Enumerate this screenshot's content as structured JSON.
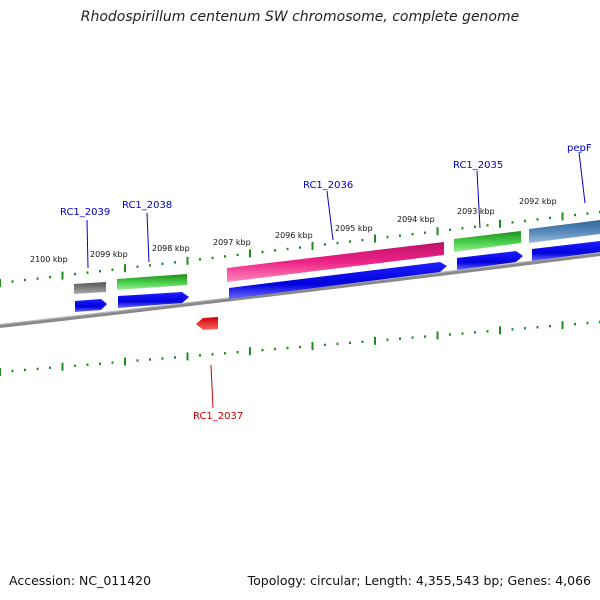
{
  "title": "Rhodospirillum centenum SW chromosome, complete genome",
  "footer": {
    "accession": "Accession: NC_011420",
    "summary": "Topology: circular; Length: 4,355,543 bp; Genes: 4,066"
  },
  "colors": {
    "backbone": "#808080",
    "ticks": "#1e8c1e",
    "cds_blue": "#0000dd",
    "label_blue": "#0000cc",
    "label_red": "#cc0000"
  },
  "kbp_labels": [
    "2100 kbp",
    "2099 kbp",
    "2098 kbp",
    "2097 kbp",
    "2096 kbp",
    "2095 kbp",
    "2094 kbp",
    "2093 kbp",
    "2092 kbp"
  ],
  "genes": [
    {
      "label": "RC1_2039",
      "color": "#777777",
      "strand": "+"
    },
    {
      "label": "RC1_2038",
      "color": "#33bb33",
      "strand": "+"
    },
    {
      "label": "RC1_2037",
      "color": "#ee1111",
      "strand": "-"
    },
    {
      "label": "RC1_2036",
      "color": "#ee2288",
      "strand": "+"
    },
    {
      "label": "RC1_2035",
      "color": "#33aa33",
      "strand": "+"
    },
    {
      "label": "pepF",
      "color": "#5588bb",
      "strand": "+"
    }
  ]
}
